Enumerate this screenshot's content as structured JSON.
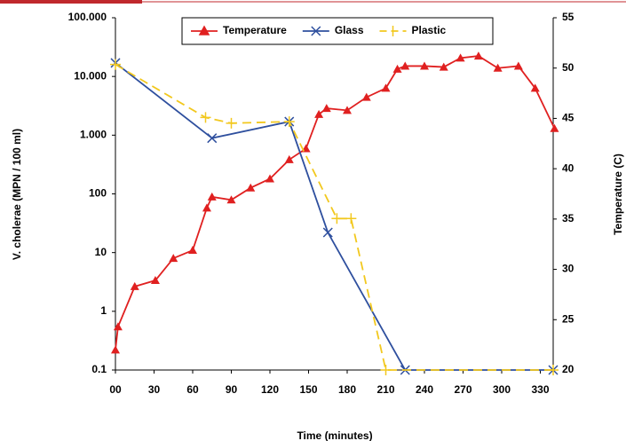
{
  "chart_data": {
    "type": "line",
    "xlabel": "Time (minutes)",
    "ylabel": "V. cholerae (MPN / 100 ml)",
    "y2label": "Temperature (C)",
    "xlim": [
      0,
      340
    ],
    "xticks": [
      {
        "value": 0,
        "label": "00"
      },
      30,
      60,
      90,
      120,
      150,
      180,
      210,
      240,
      270,
      300,
      330
    ],
    "ylim": [
      0.1,
      100000
    ],
    "log_y": true,
    "yticks": [
      0.1,
      1,
      10,
      100,
      {
        "value": 1000,
        "label": "1.000"
      },
      {
        "value": 10000,
        "label": "10.000"
      },
      {
        "value": 100000,
        "label": "100.000"
      }
    ],
    "y2lim": [
      20,
      55
    ],
    "y2ticks": [
      20,
      25,
      30,
      35,
      40,
      45,
      50,
      55
    ],
    "legend": "top",
    "series": [
      {
        "name": "Temperature",
        "color": "#e02020",
        "axis": "y2",
        "marker": "triangle",
        "dash": false,
        "x": [
          0,
          2,
          15,
          31,
          45,
          60,
          71,
          75,
          90,
          105,
          120,
          135,
          148,
          158,
          164,
          180,
          195,
          210,
          219,
          225,
          240,
          255,
          268,
          282,
          297,
          313,
          326,
          341
        ],
        "values": [
          22.0,
          24.3,
          28.3,
          28.9,
          31.1,
          31.9,
          36.1,
          37.2,
          36.9,
          38.1,
          39.0,
          40.9,
          42.0,
          45.4,
          46.0,
          45.8,
          47.1,
          48.0,
          49.9,
          50.2,
          50.2,
          50.1,
          51.0,
          51.2,
          50.0,
          50.2,
          48.0,
          44.0
        ]
      },
      {
        "name": "Glass",
        "color": "#2e4f9e",
        "axis": "y",
        "marker": "x",
        "dash": false,
        "x": [
          0,
          75,
          135,
          165,
          225,
          340
        ],
        "values": [
          17000,
          890,
          1700,
          22,
          0.1,
          0.1
        ]
      },
      {
        "name": "Plastic",
        "color": "#f2c81e",
        "axis": "y",
        "marker": "bar",
        "dash": true,
        "x": [
          0,
          70,
          90,
          135,
          172,
          183,
          210,
          340
        ],
        "values": [
          16000,
          2000,
          1600,
          1700,
          38,
          38,
          0.1,
          0.1
        ]
      }
    ]
  }
}
